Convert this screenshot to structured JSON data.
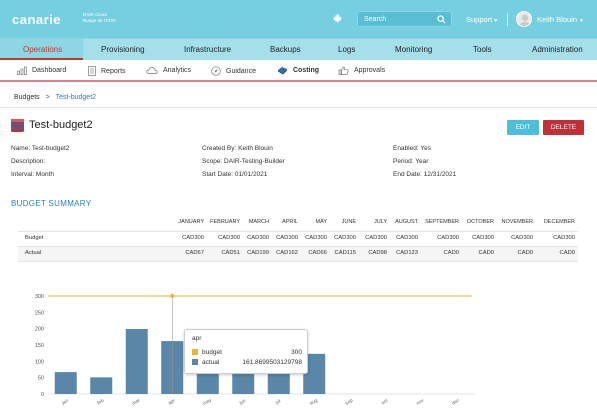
{
  "header": {
    "logo": "canarie",
    "logo_sub": [
      "DAIR Cloud",
      "Nuage de l'ATIR"
    ],
    "search_placeholder": "Search",
    "support": "Support",
    "username": "Keith Blouin"
  },
  "main_nav": [
    "Operations",
    "Provisioning",
    "Infrastructure",
    "Backups",
    "Logs",
    "Monitoring",
    "Tools",
    "Administration"
  ],
  "sub_nav": [
    "Dashboard",
    "Reports",
    "Analytics",
    "Guidance",
    "Costing",
    "Approvals"
  ],
  "breadcrumb": [
    "Budgets",
    "Test-budget2"
  ],
  "budget": {
    "title": "Test-budget2",
    "edit_label": "EDIT",
    "delete_label": "DELETE",
    "name": "Name: Test-budget2",
    "description": "Description:",
    "interval": "Interval: Month",
    "created_by": "Created By: Keith Blouin",
    "scope": "Scope: DAIR-Testing-Builder",
    "start_date": "Start Date: 01/01/2021",
    "enabled": "Enabled: Yes",
    "period": "Period: Year",
    "end_date": "End Date: 12/31/2021"
  },
  "summary": {
    "title": "BUDGET SUMMARY",
    "months": [
      "JANUARY",
      "FEBRUARY",
      "MARCH",
      "APRIL",
      "MAY",
      "JUNE",
      "JULY",
      "AUGUST",
      "SEPTEMBER",
      "OCTOBER",
      "NOVEMBER",
      "DECEMBER"
    ],
    "rows": [
      {
        "label": "Budget",
        "values": [
          "CAD300",
          "CAD300",
          "CAD300",
          "CAD300",
          "CAD300",
          "CAD300",
          "CAD300",
          "CAD300",
          "CAD300",
          "CAD300",
          "CAD300",
          "CAD300"
        ]
      },
      {
        "label": "Actual",
        "values": [
          "CAD67",
          "CAD51",
          "CAD199",
          "CAD162",
          "CAD66",
          "CAD115",
          "CAD98",
          "CAD123",
          "CAD0",
          "CAD0",
          "CAD0",
          "CAD0"
        ]
      }
    ]
  },
  "chart_data": {
    "type": "bar",
    "categories": [
      "jan",
      "feb",
      "mar",
      "apr",
      "may",
      "jun",
      "jul",
      "aug",
      "sep",
      "oct",
      "nov",
      "dec"
    ],
    "series": [
      {
        "name": "budget",
        "values": [
          300,
          300,
          300,
          300,
          300,
          300,
          300,
          300,
          300,
          300,
          300,
          300
        ],
        "color": "#f2b632"
      },
      {
        "name": "actual",
        "values": [
          67,
          51,
          199,
          162,
          66,
          115,
          98,
          123,
          0,
          0,
          0,
          0
        ],
        "color": "#5a86a8"
      }
    ],
    "yticks": [
      0,
      50,
      100,
      150,
      200,
      250,
      300
    ],
    "ylim": [
      0,
      300
    ]
  },
  "tooltip": {
    "title": "apr",
    "rows": [
      {
        "label": "budget",
        "value": "300"
      },
      {
        "label": "actual",
        "value": "161.8699503129798"
      }
    ]
  },
  "colors": {
    "accent": "#76cfe0",
    "active": "#c0392b",
    "link": "#2a7fb4",
    "delete": "#c0303a"
  }
}
